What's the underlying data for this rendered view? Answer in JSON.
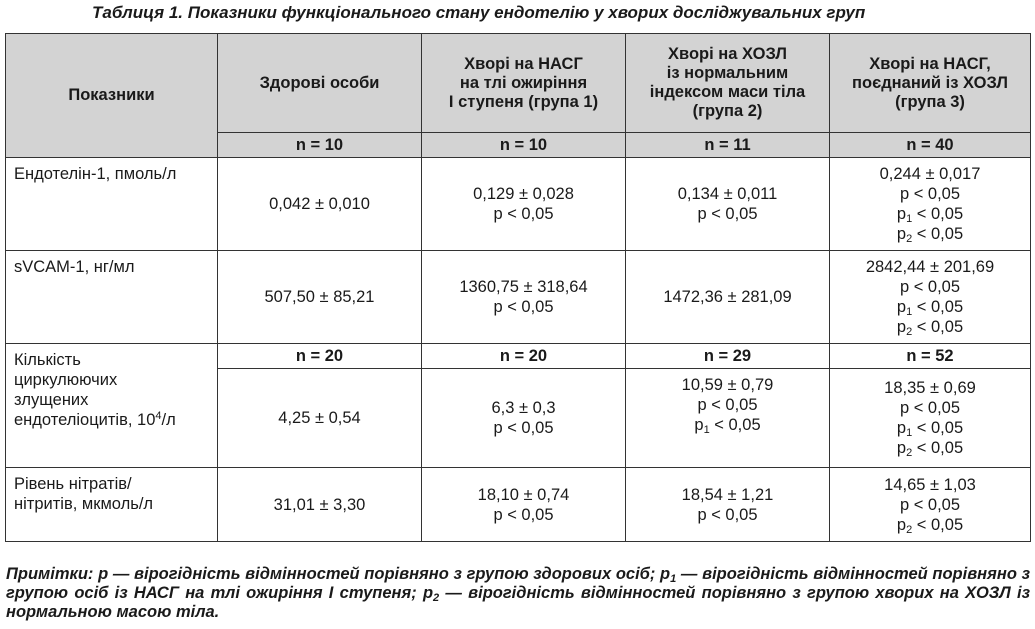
{
  "caption": "Таблиця 1. Показники функціонального стану ендотелію у хворих досліджувальних груп",
  "headers": {
    "indicator": "Показники",
    "healthy": "Здорові особи",
    "group1": [
      "Хворі на НАСГ",
      "на тлі ожиріння",
      "I ступеня (група 1)"
    ],
    "group2": [
      "Хворі на ХОЗЛ",
      "із нормальним",
      "індексом маси тіла",
      "(група 2)"
    ],
    "group3": [
      "Хворі на НАСГ,",
      "поєднаний із ХОЗЛ",
      "(група 3)"
    ]
  },
  "n_row_1": [
    "n = 10",
    "n = 10",
    "n = 11",
    "n = 40"
  ],
  "rows": {
    "endothelin": {
      "label": "Ендотелін-1, пмоль/л",
      "healthy": "0,042 ± 0,010",
      "g1": [
        "0,129 ± 0,028",
        "p < 0,05"
      ],
      "g2": [
        "0,134 ± 0,011",
        "p < 0,05"
      ],
      "g3_value": "0,244 ± 0,017",
      "g3_p": "p < 0,05",
      "g3_p1": "< 0,05",
      "g3_p2": "< 0,05"
    },
    "svcam": {
      "label": "sVCAM-1, нг/мл",
      "healthy": "507,50 ± 85,21",
      "g1": [
        "1360,75 ± 318,64",
        "p < 0,05"
      ],
      "g2": "1472,36 ± 281,09",
      "g3_value": "2842,44 ± 201,69",
      "g3_p": "p < 0,05",
      "g3_p1": "< 0,05",
      "g3_p2": "< 0,05"
    },
    "cells": {
      "label_lines": [
        "Кількість",
        "циркулюючих",
        "злущених"
      ],
      "label_last": "ендотеліоцитів, 10",
      "label_exp": "4",
      "label_unit": "/л",
      "n": [
        "n = 20",
        "n = 20",
        "n = 29",
        "n = 52"
      ],
      "healthy": "4,25 ± 0,54",
      "g1": [
        "6,3 ± 0,3",
        "p < 0,05"
      ],
      "g2_value": "10,59 ± 0,79",
      "g2_p": "p < 0,05",
      "g2_p1": "< 0,05",
      "g3_value": "18,35 ± 0,69",
      "g3_p": "p < 0,05",
      "g3_p1": "< 0,05",
      "g3_p2": "< 0,05"
    },
    "nitrates": {
      "label_lines": [
        "Рівень нітратів/",
        "нітритів, мкмоль/л"
      ],
      "healthy": "31,01 ± 3,30",
      "g1": [
        "18,10 ± 0,74",
        "p < 0,05"
      ],
      "g2": [
        "18,54 ± 1,21",
        "p < 0,05"
      ],
      "g3_value": "14,65 ± 1,03",
      "g3_p": "p < 0,05",
      "g3_p2": "< 0,05"
    }
  },
  "notes": {
    "part1": "Примітки: р — вірогідність відмінностей порівняно з групою здорових осіб; р",
    "part2": " — вірогідність відмінностей порівняно з групою осіб із НАСГ на тлі ожиріння I ступеня; р",
    "part3": " — вірогідність відмінностей порівняно з групою хворих на ХОЗЛ із нормальною масою тіла."
  }
}
